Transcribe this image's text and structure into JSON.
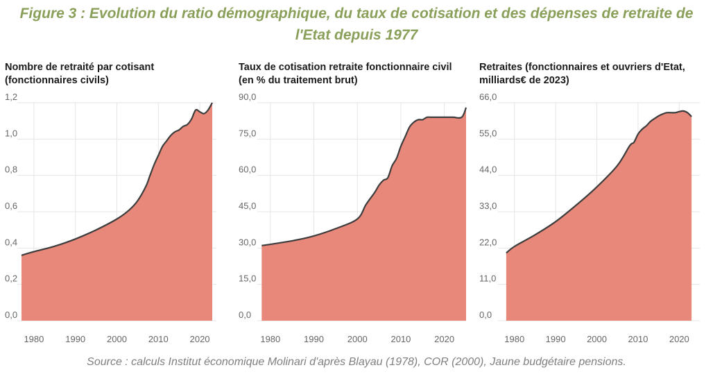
{
  "figure": {
    "title_line1": "Figure 3 : Evolution du ratio démographique, du taux de cotisation et des dépenses de retraite de",
    "title_line2": "l'Etat depuis 1977",
    "source": "Source : calculs Institut économique Molinari d'après Blayau (1978), COR (2000), Jaune budgétaire pensions."
  },
  "colors": {
    "fill": "#e8887a",
    "line": "#3d3d3d",
    "grid": "#e5e5e5",
    "title": "#8aa05a"
  },
  "chart_data": [
    {
      "type": "area",
      "title": "Nombre de retraité par cotisant",
      "subtitle": "(fonctionnaires civils)",
      "xlabel": "",
      "ylabel": "",
      "xlim": [
        1976,
        2024
      ],
      "ylim": [
        0,
        1.2
      ],
      "xticks": [
        1980,
        1990,
        2000,
        2010,
        2020
      ],
      "xtick_labels": [
        "1980",
        "1990",
        "2000",
        "2010",
        "2020"
      ],
      "yticks": [
        0,
        0.2,
        0.4,
        0.6,
        0.8,
        1.0,
        1.2
      ],
      "ytick_labels": [
        "0,0",
        "0,2",
        "0,4",
        "0,6",
        "0,8",
        "1,0",
        "1,2"
      ],
      "grid": true,
      "x": [
        1977,
        1980,
        1985,
        1990,
        1995,
        2000,
        2003,
        2005,
        2007,
        2008,
        2009,
        2010,
        2011,
        2012,
        2013,
        2014,
        2015,
        2016,
        2017,
        2018,
        2019,
        2020,
        2021,
        2022,
        2023
      ],
      "y": [
        0.36,
        0.38,
        0.41,
        0.45,
        0.5,
        0.56,
        0.61,
        0.66,
        0.74,
        0.8,
        0.86,
        0.91,
        0.96,
        0.99,
        1.02,
        1.04,
        1.05,
        1.07,
        1.08,
        1.11,
        1.16,
        1.15,
        1.14,
        1.16,
        1.2
      ]
    },
    {
      "type": "area",
      "title": "Taux de cotisation retraite fonctionnaire civil",
      "subtitle": "(en % du traitement brut)",
      "xlabel": "",
      "ylabel": "",
      "xlim": [
        1977,
        2025
      ],
      "ylim": [
        0,
        90
      ],
      "xticks": [
        1980,
        1990,
        2000,
        2010,
        2020
      ],
      "xtick_labels": [
        "1980",
        "1990",
        "2000",
        "2010",
        "2020"
      ],
      "yticks": [
        0,
        15,
        30,
        45,
        60,
        75,
        90
      ],
      "ytick_labels": [
        "0,0",
        "15,0",
        "30,0",
        "45,0",
        "60,0",
        "75,0",
        "90,0"
      ],
      "grid": true,
      "x": [
        1978,
        1985,
        1990,
        1995,
        2000,
        2002,
        2004,
        2005,
        2006,
        2007,
        2008,
        2009,
        2010,
        2011,
        2012,
        2013,
        2014,
        2015,
        2016,
        2017,
        2018,
        2020,
        2022,
        2024,
        2025
      ],
      "y": [
        31,
        33,
        35,
        38,
        42,
        48,
        53,
        56,
        58,
        59,
        64,
        67,
        72,
        76,
        80,
        82,
        83,
        83,
        84,
        84,
        84,
        84,
        84,
        84,
        88
      ]
    },
    {
      "type": "area",
      "title": "Retraites (fonctionnaires et ouvriers d'Etat,",
      "subtitle": "milliards€ de 2023)",
      "xlabel": "",
      "ylabel": "",
      "xlim": [
        1976,
        2025
      ],
      "ylim": [
        0,
        66
      ],
      "xticks": [
        1980,
        1990,
        2000,
        2010,
        2020
      ],
      "xtick_labels": [
        "1980",
        "1990",
        "2000",
        "2010",
        "2020"
      ],
      "yticks": [
        0,
        11,
        22,
        33,
        44,
        55,
        66
      ],
      "ytick_labels": [
        "0,0",
        "11,0",
        "22,0",
        "33,0",
        "44,0",
        "55,0",
        "66,0"
      ],
      "grid": true,
      "x": [
        1978,
        1980,
        1985,
        1990,
        1995,
        2000,
        2005,
        2008,
        2009,
        2010,
        2011,
        2012,
        2013,
        2014,
        2015,
        2016,
        2017,
        2018,
        2019,
        2020,
        2021,
        2022,
        2023
      ],
      "y": [
        20.5,
        22.5,
        26.0,
        30.0,
        35.0,
        40.5,
        47.0,
        53.0,
        54.0,
        56.5,
        58.0,
        59.0,
        60.3,
        61.2,
        62.0,
        62.6,
        63.0,
        63.0,
        63.0,
        63.3,
        63.5,
        63.0,
        61.8
      ]
    }
  ]
}
